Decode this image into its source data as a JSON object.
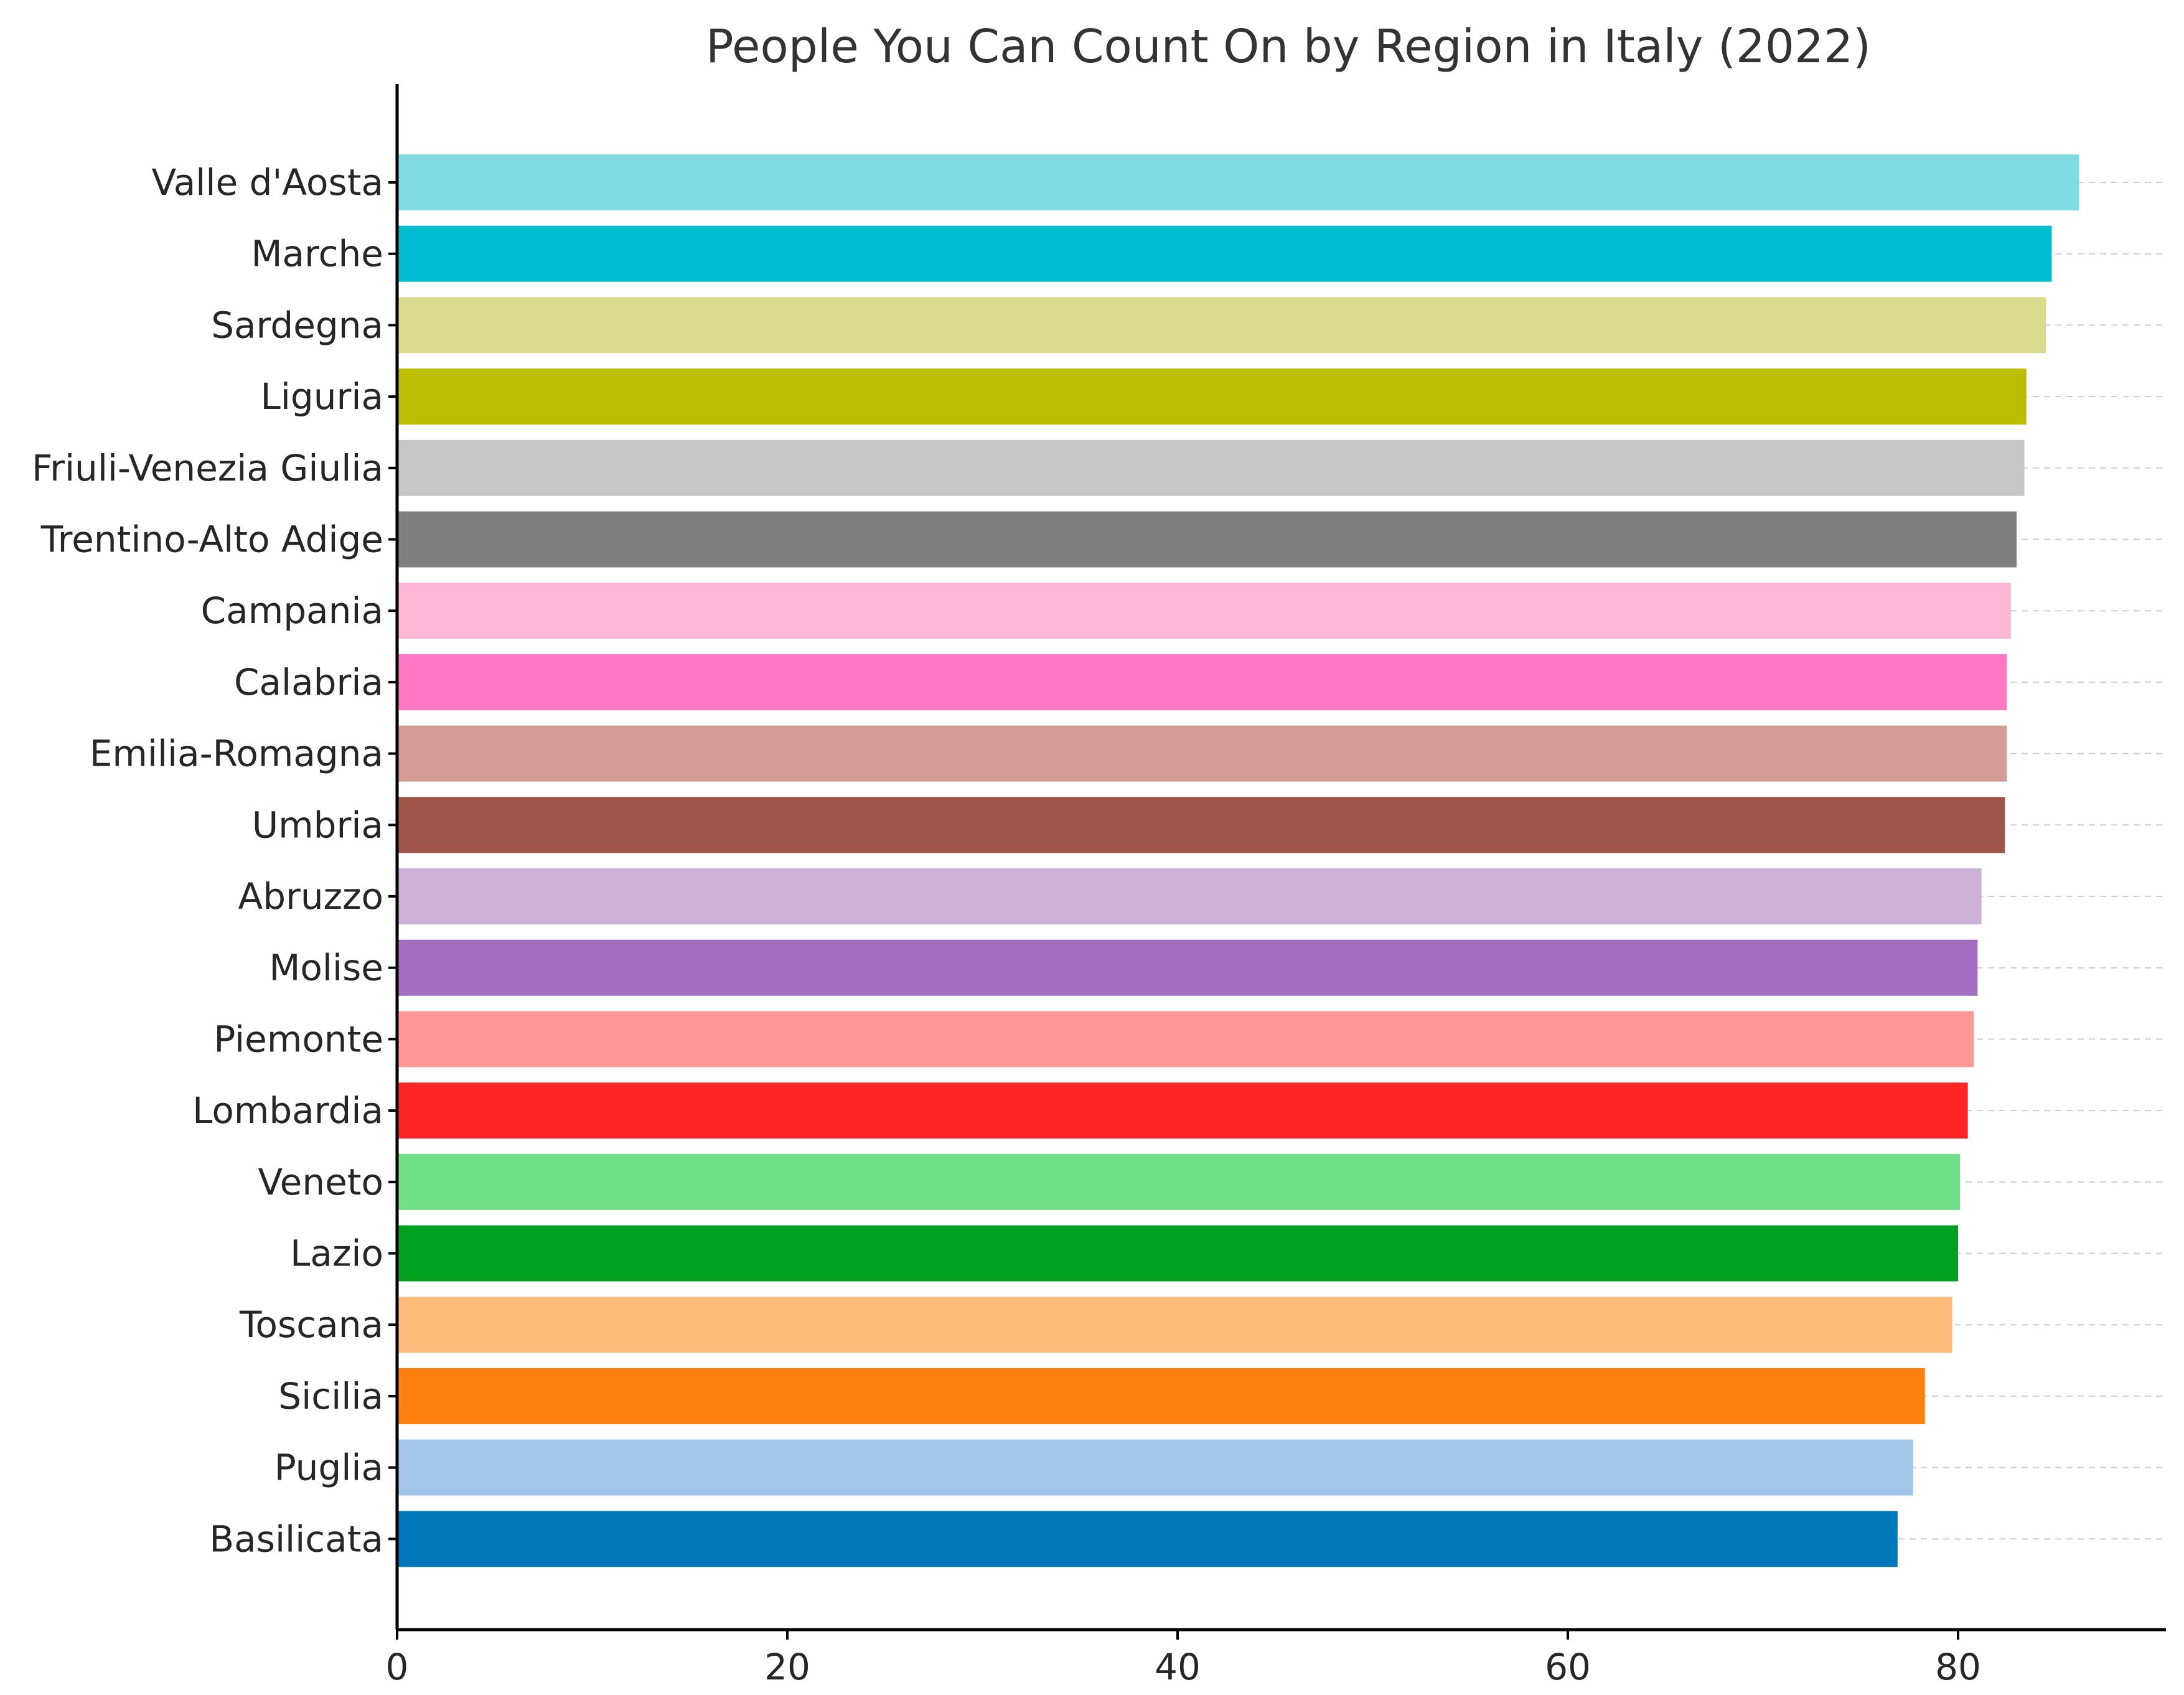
{
  "chart_data": {
    "type": "bar",
    "orientation": "horizontal",
    "title": "People You Can Count On by Region in Italy (2022)",
    "xlabel": "",
    "ylabel": "",
    "xlim": [
      0,
      90
    ],
    "xticks": [
      0,
      20,
      40,
      60,
      80
    ],
    "grid": "horizontal dashed lines at each category",
    "legend": "none",
    "categories": [
      "Valle d'Aosta",
      "Marche",
      "Sardegna",
      "Liguria",
      "Friuli-Venezia Giulia",
      "Trentino-Alto Adige",
      "Campania",
      "Calabria",
      "Emilia-Romagna",
      "Umbria",
      "Abruzzo",
      "Molise",
      "Piemonte",
      "Lombardia",
      "Veneto",
      "Lazio",
      "Toscana",
      "Sicilia",
      "Puglia",
      "Basilicata"
    ],
    "values": [
      86.2,
      84.8,
      84.5,
      83.5,
      83.4,
      83.0,
      82.7,
      82.5,
      82.5,
      82.4,
      81.2,
      81.0,
      80.8,
      80.5,
      80.1,
      80.0,
      79.7,
      78.3,
      77.7,
      76.9
    ],
    "colors": [
      "#80dbe4",
      "#00bcd1",
      "#dbdb8d",
      "#bcbd00",
      "#c7c7c7",
      "#7f7f7f",
      "#fdb6d6",
      "#fe77c4",
      "#d39d95",
      "#9f554a",
      "#cbb0d8",
      "#a36bc2",
      "#fe9896",
      "#fe2626",
      "#70df88",
      "#00a021",
      "#febb79",
      "#fe7f0d",
      "#a1c6ea",
      "#0077ba"
    ]
  }
}
